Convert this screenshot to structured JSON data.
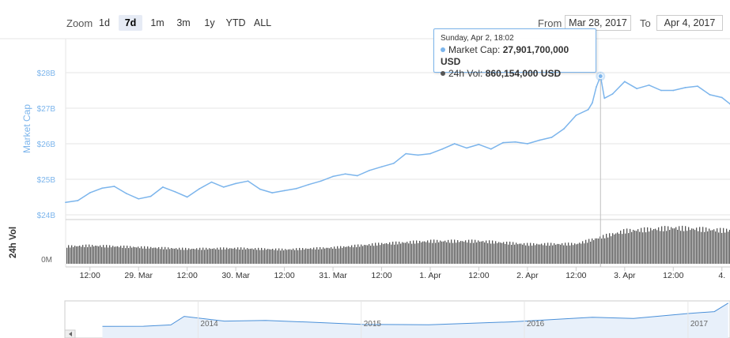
{
  "toolbar": {
    "zoom_label": "Zoom",
    "zoom_buttons": [
      "1d",
      "7d",
      "1m",
      "3m",
      "1y",
      "YTD",
      "ALL"
    ],
    "active_zoom": "7d",
    "from_label": "From",
    "from_value": "Mar 28, 2017",
    "to_label": "To",
    "to_value": "Apr 4, 2017"
  },
  "tooltip": {
    "date": "Sunday, Apr 2, 18:02",
    "market_cap_label": "Market Cap:",
    "market_cap_value": "27,901,700,000 USD",
    "volume_label": "24h Vol:",
    "volume_value": "860,154,000 USD"
  },
  "colors": {
    "market_cap_line": "#7cb5ec",
    "volume_bars": "#555555",
    "navigator_line": "#4a90d9",
    "tooltip_border": "#7cb5ec"
  },
  "chart_data": [
    {
      "type": "line",
      "title": "",
      "ylabel": "Market Cap",
      "y_tick_labels": [
        "$24B",
        "$25B",
        "$26B",
        "$27B",
        "$28B"
      ],
      "ylim": [
        24,
        28.2
      ],
      "y_unit": "billion USD",
      "grid": true,
      "x_range": [
        "2017-03-28 06:00",
        "2017-04-04 02:00"
      ],
      "x_tick_labels": [
        "12:00",
        "29. Mar",
        "12:00",
        "30. Mar",
        "12:00",
        "31. Mar",
        "12:00",
        "1. Apr",
        "12:00",
        "2. Apr",
        "12:00",
        "3. Apr",
        "12:00",
        "4."
      ],
      "series": [
        {
          "name": "Market Cap",
          "x": [
            "2017-03-28 06:00",
            "2017-03-28 09:00",
            "2017-03-28 12:00",
            "2017-03-28 15:00",
            "2017-03-28 18:00",
            "2017-03-28 21:00",
            "2017-03-29 00:00",
            "2017-03-29 03:00",
            "2017-03-29 06:00",
            "2017-03-29 09:00",
            "2017-03-29 12:00",
            "2017-03-29 15:00",
            "2017-03-29 18:00",
            "2017-03-29 21:00",
            "2017-03-30 00:00",
            "2017-03-30 03:00",
            "2017-03-30 06:00",
            "2017-03-30 09:00",
            "2017-03-30 12:00",
            "2017-03-30 15:00",
            "2017-03-30 18:00",
            "2017-03-30 21:00",
            "2017-03-31 00:00",
            "2017-03-31 03:00",
            "2017-03-31 06:00",
            "2017-03-31 09:00",
            "2017-03-31 12:00",
            "2017-03-31 15:00",
            "2017-03-31 18:00",
            "2017-03-31 21:00",
            "2017-04-01 00:00",
            "2017-04-01 03:00",
            "2017-04-01 06:00",
            "2017-04-01 09:00",
            "2017-04-01 12:00",
            "2017-04-01 15:00",
            "2017-04-01 18:00",
            "2017-04-01 21:00",
            "2017-04-02 00:00",
            "2017-04-02 03:00",
            "2017-04-02 06:00",
            "2017-04-02 09:00",
            "2017-04-02 12:00",
            "2017-04-02 15:00",
            "2017-04-02 16:00",
            "2017-04-02 17:00",
            "2017-04-02 18:02",
            "2017-04-02 19:00",
            "2017-04-02 21:00",
            "2017-04-03 00:00",
            "2017-04-03 03:00",
            "2017-04-03 06:00",
            "2017-04-03 09:00",
            "2017-04-03 12:00",
            "2017-04-03 15:00",
            "2017-04-03 18:00",
            "2017-04-03 21:00",
            "2017-04-04 00:00",
            "2017-04-04 02:00"
          ],
          "values": [
            24.35,
            24.4,
            24.62,
            24.75,
            24.8,
            24.6,
            24.45,
            24.52,
            24.78,
            24.65,
            24.5,
            24.73,
            24.92,
            24.78,
            24.88,
            24.95,
            24.72,
            24.62,
            24.68,
            24.74,
            24.85,
            24.95,
            25.08,
            25.15,
            25.1,
            25.25,
            25.35,
            25.45,
            25.72,
            25.68,
            25.72,
            25.85,
            26.0,
            25.88,
            25.98,
            25.85,
            26.03,
            26.05,
            26.0,
            26.1,
            26.18,
            26.42,
            26.8,
            26.96,
            27.15,
            27.6,
            27.9,
            27.28,
            27.4,
            27.75,
            27.55,
            27.65,
            27.5,
            27.5,
            27.58,
            27.62,
            27.38,
            27.3,
            27.12
          ]
        }
      ]
    },
    {
      "type": "bar",
      "title": "",
      "ylabel": "24h Vol",
      "y_tick_labels": [
        "0M"
      ],
      "y_unit": "million USD",
      "series": [
        {
          "name": "24h Vol",
          "x": [
            "2017-03-28 06:00",
            "2017-03-28 12:00",
            "2017-03-29 00:00",
            "2017-03-29 12:00",
            "2017-03-30 00:00",
            "2017-03-30 12:00",
            "2017-03-31 00:00",
            "2017-03-31 12:00",
            "2017-04-01 00:00",
            "2017-04-01 12:00",
            "2017-04-02 00:00",
            "2017-04-02 12:00",
            "2017-04-02 18:02",
            "2017-04-03 00:00",
            "2017-04-03 12:00",
            "2017-04-04 00:00"
          ],
          "values": [
            560,
            585,
            535,
            480,
            500,
            460,
            520,
            650,
            730,
            730,
            630,
            640,
            860,
            1060,
            1160,
            1080
          ]
        }
      ]
    },
    {
      "type": "area",
      "title": "",
      "x_tick_labels": [
        "2014",
        "2015",
        "2016",
        "2017"
      ],
      "series": [
        {
          "name": "",
          "x": [
            "2013-06",
            "2013-09",
            "2013-11",
            "2013-12",
            "2014-03",
            "2014-06",
            "2014-09",
            "2015-01",
            "2015-06",
            "2015-12",
            "2016-06",
            "2016-09",
            "2017-01",
            "2017-03",
            "2017-04"
          ],
          "values": [
            1.4,
            1.6,
            3.0,
            12.0,
            7.0,
            7.7,
            6.0,
            3.6,
            3.2,
            6.2,
            11.0,
            9.8,
            15.0,
            17.0,
            26.0
          ]
        }
      ]
    }
  ]
}
